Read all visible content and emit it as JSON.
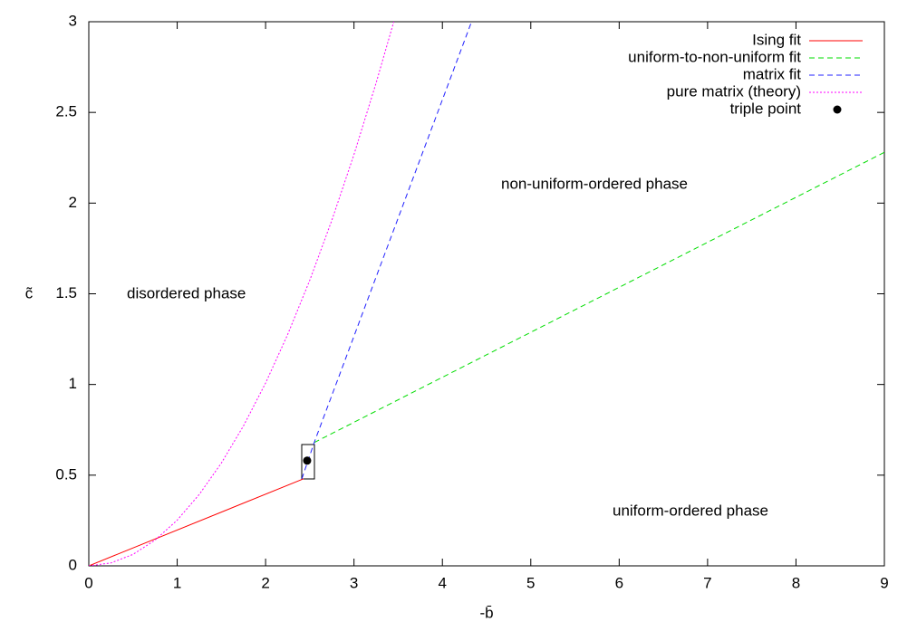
{
  "chart_data": {
    "type": "line",
    "x_label": "-b̄",
    "y_label": "c̃",
    "xlim": [
      0,
      9
    ],
    "ylim": [
      0,
      3
    ],
    "xticks": [
      0,
      1,
      2,
      3,
      4,
      5,
      6,
      7,
      8,
      9
    ],
    "yticks": [
      0,
      0.5,
      1,
      1.5,
      2,
      2.5,
      3
    ],
    "legend": "top-right",
    "annotations": [
      "disordered phase",
      "non-uniform-ordered phase",
      "uniform-ordered phase"
    ],
    "series": [
      {
        "name": "Ising fit",
        "color": "#ff0000",
        "dash": "solid",
        "x": [
          0,
          2.43
        ],
        "values": [
          0,
          0.48
        ]
      },
      {
        "name": "uniform-to-non-uniform fit",
        "color": "#00dd00",
        "dash": "dashed",
        "x": [
          2.55,
          9
        ],
        "values": [
          0.68,
          2.28
        ]
      },
      {
        "name": "matrix fit",
        "color": "#2020ff",
        "dash": "dashed",
        "x": [
          2.41,
          2.55,
          4.33
        ],
        "values": [
          0.48,
          0.68,
          3
        ]
      },
      {
        "name": "pure matrix (theory)",
        "color": "#ff00ff",
        "dash": "dotted",
        "x": [
          0,
          0.25,
          0.5,
          0.75,
          1,
          1.25,
          1.5,
          1.75,
          2,
          2.25,
          2.5,
          2.75,
          3,
          3.25,
          3.45
        ],
        "values": [
          0,
          0.016,
          0.063,
          0.142,
          0.252,
          0.394,
          0.567,
          0.772,
          1.008,
          1.276,
          1.575,
          1.906,
          2.268,
          2.662,
          3.0
        ]
      },
      {
        "name": "triple point",
        "color": "#000000",
        "dash": "points",
        "x": [
          2.47
        ],
        "values": [
          0.58
        ]
      }
    ]
  }
}
